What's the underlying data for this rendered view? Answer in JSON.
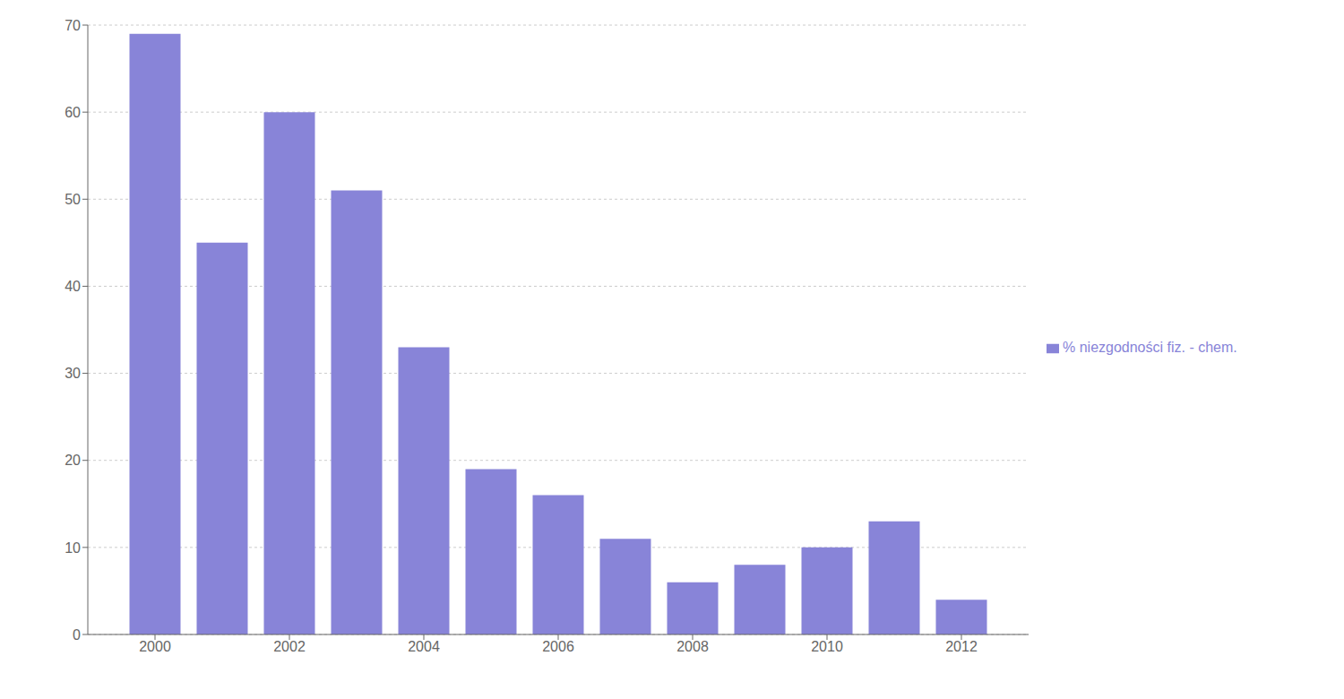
{
  "chart_data": {
    "type": "bar",
    "x": [
      2000,
      2001,
      2002,
      2003,
      2004,
      2005,
      2006,
      2007,
      2008,
      2009,
      2010,
      2011,
      2012
    ],
    "series": [
      {
        "name": "% niezgodności fiz. - chem.",
        "color": "#8884d8",
        "values": [
          69,
          45,
          60,
          51,
          33,
          19,
          16,
          11,
          6,
          8,
          10,
          13,
          4
        ]
      }
    ],
    "xlim": [
      1999,
      2013
    ],
    "xticks": [
      2000,
      2002,
      2004,
      2006,
      2008,
      2010,
      2012
    ],
    "ylim": [
      0,
      70
    ],
    "yticks": [
      0,
      10,
      20,
      30,
      40,
      50,
      60,
      70
    ],
    "grid": true,
    "legend": "right"
  }
}
